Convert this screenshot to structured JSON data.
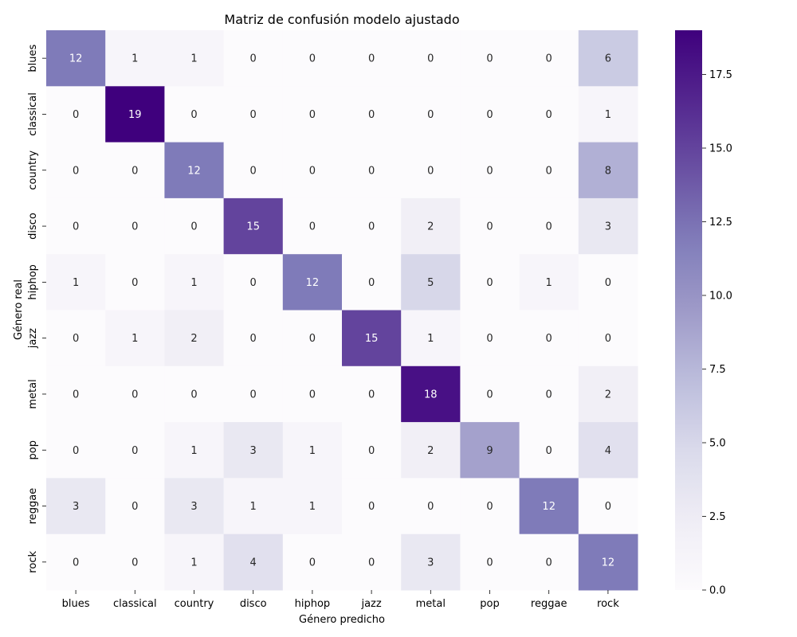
{
  "chart_data": {
    "type": "heatmap",
    "title": "Matriz de confusión modelo ajustado",
    "xlabel": "Género predicho",
    "ylabel": "Género real",
    "x_categories": [
      "blues",
      "classical",
      "country",
      "disco",
      "hiphop",
      "jazz",
      "metal",
      "pop",
      "reggae",
      "rock"
    ],
    "y_categories": [
      "blues",
      "classical",
      "country",
      "disco",
      "hiphop",
      "jazz",
      "metal",
      "pop",
      "reggae",
      "rock"
    ],
    "values": [
      [
        12,
        1,
        1,
        0,
        0,
        0,
        0,
        0,
        0,
        6
      ],
      [
        0,
        19,
        0,
        0,
        0,
        0,
        0,
        0,
        0,
        1
      ],
      [
        0,
        0,
        12,
        0,
        0,
        0,
        0,
        0,
        0,
        8
      ],
      [
        0,
        0,
        0,
        15,
        0,
        0,
        2,
        0,
        0,
        3
      ],
      [
        1,
        0,
        1,
        0,
        12,
        0,
        5,
        0,
        1,
        0
      ],
      [
        0,
        1,
        2,
        0,
        0,
        15,
        1,
        0,
        0,
        0
      ],
      [
        0,
        0,
        0,
        0,
        0,
        0,
        18,
        0,
        0,
        2
      ],
      [
        0,
        0,
        1,
        3,
        1,
        0,
        2,
        9,
        0,
        4
      ],
      [
        3,
        0,
        3,
        1,
        1,
        0,
        0,
        0,
        12,
        0
      ],
      [
        0,
        0,
        1,
        4,
        0,
        0,
        3,
        0,
        0,
        12
      ]
    ],
    "colorscale": "Purples",
    "colorbar": {
      "range": [
        0,
        19
      ],
      "ticks": [
        0.0,
        2.5,
        5.0,
        7.5,
        10.0,
        12.5,
        15.0,
        17.5
      ],
      "tick_labels": [
        "0.0",
        "2.5",
        "5.0",
        "7.5",
        "10.0",
        "12.5",
        "15.0",
        "17.5"
      ]
    },
    "annotations": true,
    "grid": false
  }
}
